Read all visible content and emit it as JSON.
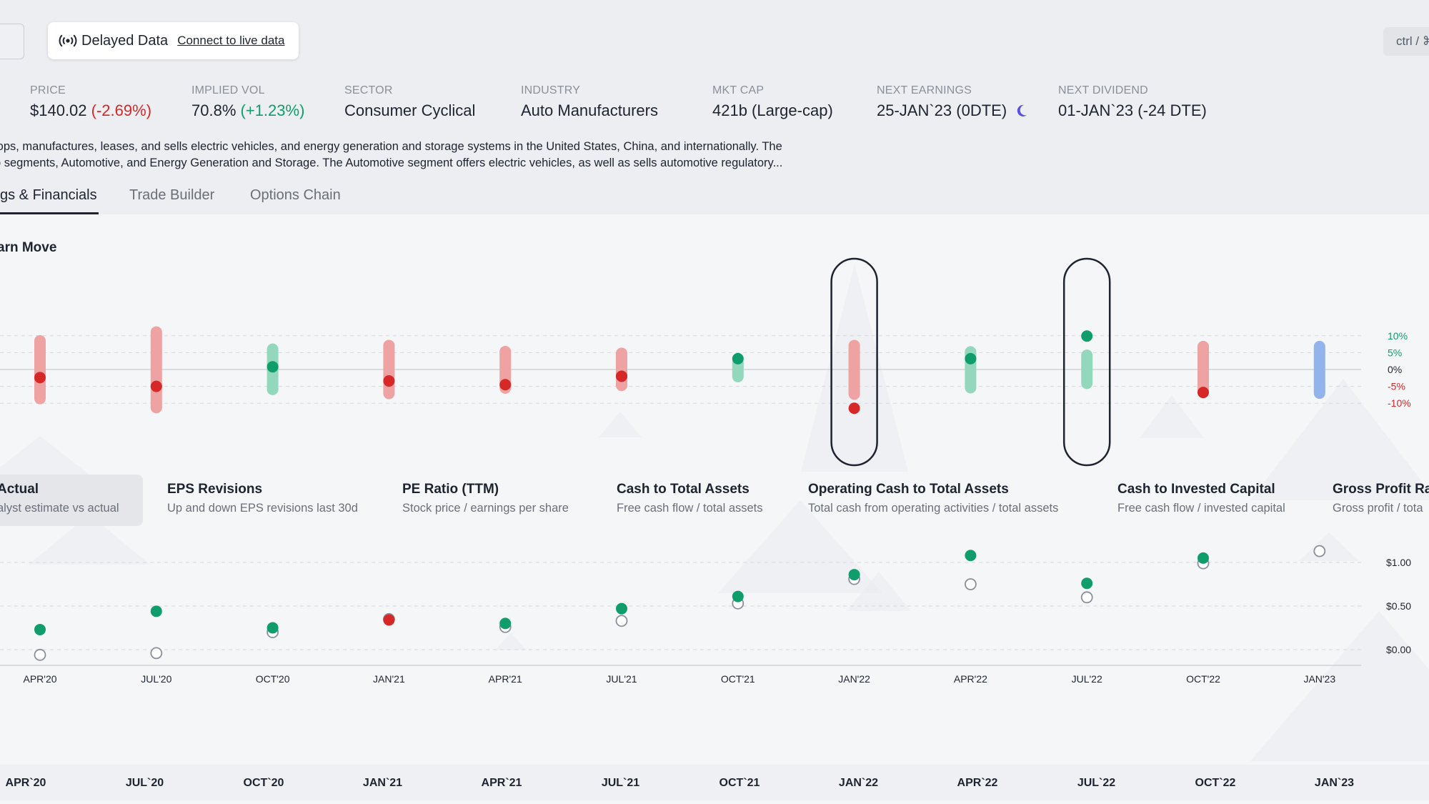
{
  "header": {
    "delayed_label": "Delayed Data",
    "live_link": "Connect to live data",
    "shortcut_hint": "ctrl / ⌘"
  },
  "stats": [
    {
      "label": "PRICE",
      "value": "$140.02",
      "change": "(-2.69%)",
      "change_color": "#d72828"
    },
    {
      "label": "IMPLIED VOL",
      "value": "70.8%",
      "change": "(+1.23%)",
      "change_color": "#0f9d6b"
    },
    {
      "label": "SECTOR",
      "value": "Consumer Cyclical"
    },
    {
      "label": "INDUSTRY",
      "value": "Auto Manufacturers"
    },
    {
      "label": "MKT CAP",
      "value": "421b (Large-cap)"
    },
    {
      "label": "NEXT EARNINGS",
      "value": "25-JAN`23 (0DTE)",
      "icon": "moon-icon"
    },
    {
      "label": "NEXT DIVIDEND",
      "value": "01-JAN`23 (-24 DTE)"
    }
  ],
  "description": {
    "line1": "lops, manufactures, leases, and sells electric vehicles, and energy generation and storage systems in the United States, China, and internationally. The",
    "line2": "o segments, Automotive, and Energy Generation and Storage. The Automotive segment offers electric vehicles, as well as sells automotive regulatory..."
  },
  "tabs": [
    {
      "label": "gs & Financials",
      "active": true
    },
    {
      "label": "Trade Builder",
      "active": false
    },
    {
      "label": "Options Chain",
      "active": false
    }
  ],
  "section_title": "arn Move",
  "metrics": [
    {
      "title": "Actual",
      "subtitle": "alyst estimate vs actual",
      "selected": true
    },
    {
      "title": "EPS Revisions",
      "subtitle": "Up and down EPS revisions last 30d"
    },
    {
      "title": "PE Ratio (TTM)",
      "subtitle": "Stock price / earnings per share"
    },
    {
      "title": "Cash to Total Assets",
      "subtitle": "Free cash flow / total assets"
    },
    {
      "title": "Operating Cash to Total Assets",
      "subtitle": "Total cash from operating activities / total assets"
    },
    {
      "title": "Cash to Invested Capital",
      "subtitle": "Free cash flow / invested capital"
    },
    {
      "title": "Gross Profit Ra",
      "subtitle": "Gross profit / tota"
    }
  ],
  "colors": {
    "up": "#0f9d6b",
    "down": "#d72828",
    "up_range": "#93d7bd",
    "down_range": "#eea2a2",
    "upcoming_range": "#93b3ec"
  },
  "chart_data": [
    {
      "type": "range",
      "title": "",
      "x": [
        "APR'20",
        "JUL'20",
        "OCT'20",
        "JAN'21",
        "APR'21",
        "JUL'21",
        "OCT'21",
        "JAN'22",
        "APR'22",
        "JUL'22",
        "OCT'22",
        "JAN'23"
      ],
      "y_ticks": [
        "10%",
        "5%",
        "0%",
        "-5%",
        "-10%"
      ],
      "ylim": [
        -10,
        10
      ],
      "expected_move_low": [
        -10.3,
        -13.0,
        -7.6,
        -8.8,
        -7.2,
        -6.4,
        -3.8,
        -9.0,
        -7.1,
        -5.8,
        -8.3,
        -8.7
      ],
      "expected_move_high": [
        10.2,
        12.8,
        7.7,
        8.8,
        7.0,
        6.5,
        3.7,
        8.8,
        6.9,
        5.9,
        8.5,
        8.5
      ],
      "actual_move": [
        -2.4,
        -5.0,
        0.8,
        -3.4,
        -4.5,
        -2.0,
        3.2,
        -11.5,
        3.2,
        9.9,
        -6.8,
        null
      ],
      "highlighted": [
        "JAN'22",
        "JUL'22"
      ],
      "grid": true
    },
    {
      "type": "scatter",
      "title": "",
      "x": [
        "APR'20",
        "JUL'20",
        "OCT'20",
        "JAN'21",
        "APR'21",
        "JUL'21",
        "OCT'21",
        "JAN'22",
        "APR'22",
        "JUL'22",
        "OCT'22",
        "JAN'23"
      ],
      "y_ticks": [
        "$1.00",
        "$0.50",
        "$0.00"
      ],
      "ylim": [
        0,
        1
      ],
      "series": [
        {
          "name": "",
          "values": [
            0.23,
            0.44,
            0.25,
            0.34,
            0.3,
            0.47,
            0.61,
            0.86,
            1.08,
            0.76,
            1.05,
            null
          ]
        },
        {
          "name": "",
          "values": [
            -0.06,
            -0.04,
            0.2,
            0.35,
            0.26,
            0.33,
            0.53,
            0.81,
            0.75,
            0.6,
            0.99,
            1.13
          ]
        }
      ],
      "actual_colors": [
        "#0f9d6b",
        "#0f9d6b",
        "#0f9d6b",
        "#d72828",
        "#0f9d6b",
        "#0f9d6b",
        "#0f9d6b",
        "#0f9d6b",
        "#0f9d6b",
        "#0f9d6b",
        "#0f9d6b"
      ],
      "grid": true
    }
  ],
  "bottom_axis": [
    "APR`20",
    "JUL`20",
    "OCT`20",
    "JAN`21",
    "APR`21",
    "JUL`21",
    "OCT`21",
    "JAN`22",
    "APR`22",
    "JUL`22",
    "OCT`22",
    "JAN`23"
  ]
}
